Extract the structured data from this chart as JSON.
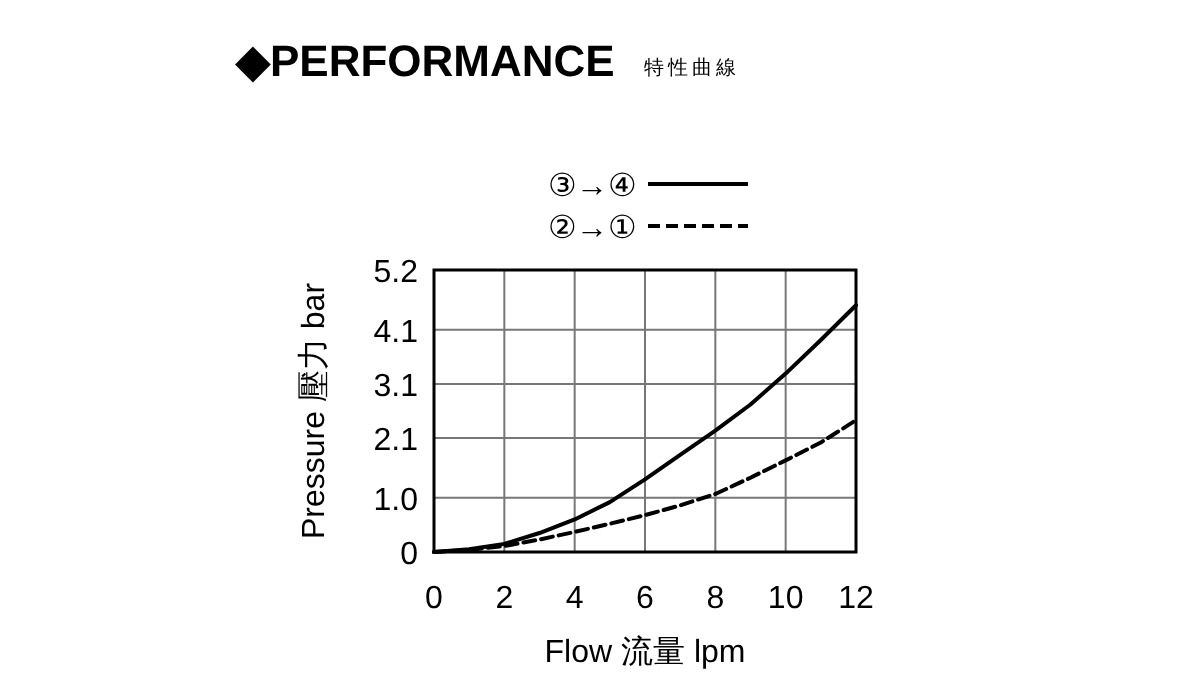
{
  "chart_data": {
    "type": "line",
    "title": "◆PERFORMANCE",
    "subtitle": "特性曲線",
    "xlabel": "Flow 流量 lpm",
    "ylabel": "Pressure 壓力 bar",
    "x": [
      0,
      1,
      2,
      3,
      4,
      5,
      6,
      7,
      8,
      9,
      10,
      11,
      12
    ],
    "series": [
      {
        "name": "③→④",
        "color": "#000000",
        "line_style": "solid",
        "values": [
          0,
          0.05,
          0.15,
          0.35,
          0.6,
          0.92,
          1.34,
          1.79,
          2.24,
          2.72,
          3.29,
          3.91,
          4.55
        ]
      },
      {
        "name": "②→①",
        "color": "#000000",
        "line_style": "dashed",
        "values": [
          0,
          0.04,
          0.11,
          0.23,
          0.37,
          0.52,
          0.68,
          0.86,
          1.07,
          1.37,
          1.69,
          2.02,
          2.43
        ]
      }
    ],
    "xlim": [
      0,
      12
    ],
    "xticks": [
      0,
      2,
      4,
      6,
      8,
      10,
      12
    ],
    "ylim": [
      0,
      5.2
    ],
    "yticks": [
      0,
      {
        "value": 1.0,
        "label": "1.0"
      },
      2.1,
      3.1,
      4.1,
      5.2
    ],
    "grid": true,
    "legend": "top"
  }
}
